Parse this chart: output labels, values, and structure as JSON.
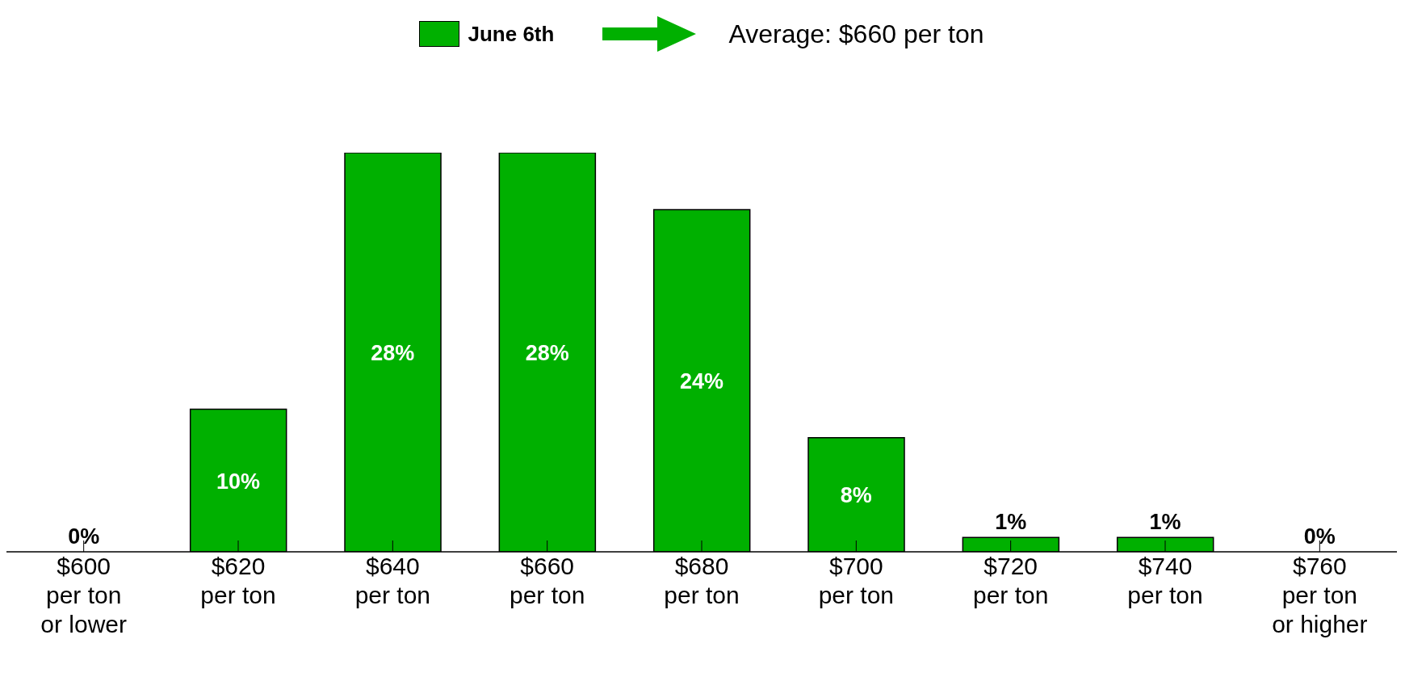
{
  "chart_data": {
    "type": "bar",
    "categories": [
      "$600\nper ton\nor lower",
      "$620\nper ton",
      "$640\nper ton",
      "$660\nper ton",
      "$680\nper ton",
      "$700\nper ton",
      "$720\nper ton",
      "$740\nper ton",
      "$760\nper ton\nor higher"
    ],
    "series": [
      {
        "name": "June 6th",
        "color": "#00b000",
        "values": [
          0,
          10,
          28,
          28,
          24,
          8,
          1,
          1,
          0
        ],
        "value_labels": [
          "0%",
          "10%",
          "28%",
          "28%",
          "24%",
          "8%",
          "1%",
          "1%",
          "0%"
        ]
      }
    ],
    "annotations": [
      "Average: $660 per ton"
    ],
    "legend": "top",
    "grid": false
  }
}
